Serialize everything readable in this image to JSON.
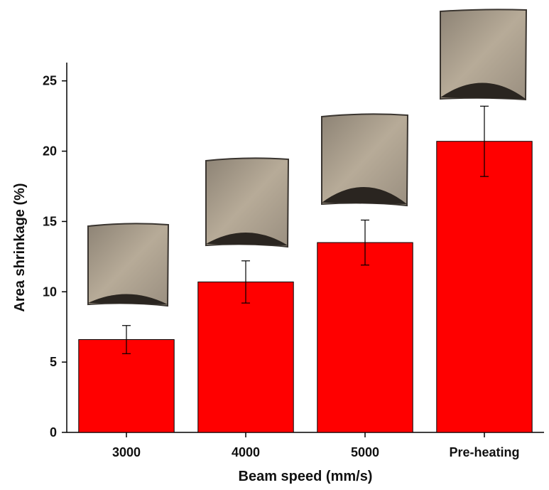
{
  "chart_data": {
    "type": "bar",
    "categories": [
      "3000",
      "4000",
      "5000",
      "Pre-heating"
    ],
    "values": [
      6.6,
      10.7,
      13.5,
      20.7
    ],
    "errors": [
      1.0,
      1.5,
      1.6,
      2.5
    ],
    "color": "#ff0000",
    "x_label": "Beam speed (mm/s)",
    "y_label": "Area shrinkage (%)",
    "ylim": [
      0,
      26.3
    ],
    "yticks": [
      0,
      5,
      10,
      15,
      20,
      25
    ],
    "grid": false
  }
}
